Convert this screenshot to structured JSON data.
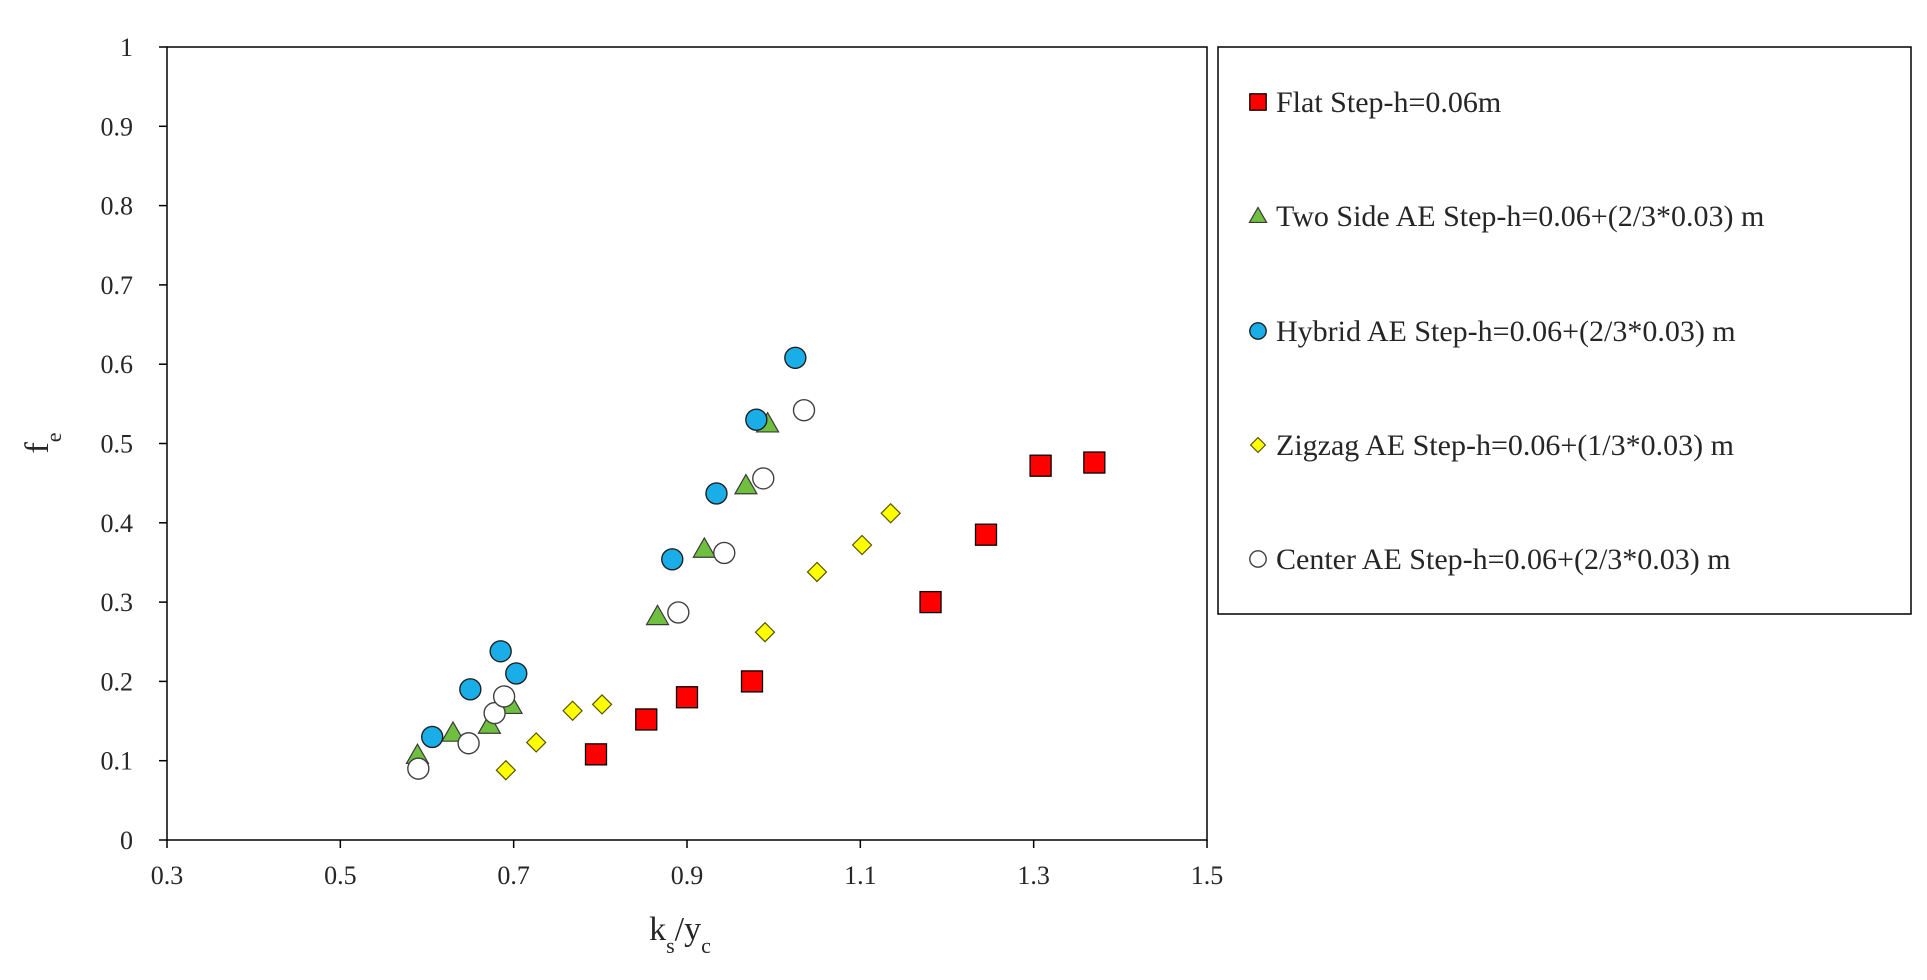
{
  "chart_data": {
    "type": "scatter",
    "title": "",
    "xlabel": {
      "main": "k",
      "sub1": "s",
      "sep": "/y",
      "sub2": "c"
    },
    "ylabel": {
      "main": "f",
      "sub": "e"
    },
    "xlim": [
      0.3,
      1.5
    ],
    "ylim": [
      0,
      1
    ],
    "xticks": [
      0.3,
      0.5,
      0.7,
      0.9,
      1.1,
      1.3,
      1.5
    ],
    "xtick_labels": [
      "0.3",
      "0.5",
      "0.7",
      "0.9",
      "1.1",
      "1.3",
      "1.5"
    ],
    "yticks": [
      0,
      0.1,
      0.2,
      0.3,
      0.4,
      0.5,
      0.6,
      0.7,
      0.8,
      0.9,
      1
    ],
    "ytick_labels": [
      "0",
      "0.1",
      "0.2",
      "0.3",
      "0.4",
      "0.5",
      "0.6",
      "0.7",
      "0.8",
      "0.9",
      "1"
    ],
    "grid": false,
    "legend_position": "right",
    "series": [
      {
        "name": "Flat Step-h=0.06m",
        "marker": "square",
        "color": "#ff0000",
        "points": [
          [
            0.795,
            0.108
          ],
          [
            0.853,
            0.152
          ],
          [
            0.9,
            0.18
          ],
          [
            0.975,
            0.2
          ],
          [
            1.181,
            0.3
          ],
          [
            1.245,
            0.385
          ],
          [
            1.308,
            0.472
          ],
          [
            1.37,
            0.476
          ]
        ]
      },
      {
        "name": "Two Side AE Step-h=0.06+(2/3*0.03) m",
        "marker": "triangle",
        "color": "#70c040",
        "points": [
          [
            0.589,
            0.107
          ],
          [
            0.63,
            0.135
          ],
          [
            0.672,
            0.145
          ],
          [
            0.697,
            0.17
          ],
          [
            0.866,
            0.282
          ],
          [
            0.92,
            0.367
          ],
          [
            0.968,
            0.447
          ],
          [
            0.993,
            0.525
          ]
        ]
      },
      {
        "name": "Hybrid AE Step-h=0.06+(2/3*0.03) m",
        "marker": "circle",
        "color": "#1aaee8",
        "points": [
          [
            0.606,
            0.13
          ],
          [
            0.65,
            0.19
          ],
          [
            0.685,
            0.238
          ],
          [
            0.703,
            0.21
          ],
          [
            0.883,
            0.354
          ],
          [
            0.934,
            0.437
          ],
          [
            0.98,
            0.53
          ],
          [
            1.025,
            0.608
          ]
        ]
      },
      {
        "name": "Zigzag AE Step-h=0.06+(1/3*0.03) m",
        "marker": "diamond",
        "color": "#ffff00",
        "points": [
          [
            0.691,
            0.088
          ],
          [
            0.726,
            0.123
          ],
          [
            0.768,
            0.163
          ],
          [
            0.802,
            0.171
          ],
          [
            0.99,
            0.262
          ],
          [
            1.05,
            0.338
          ],
          [
            1.102,
            0.372
          ],
          [
            1.135,
            0.412
          ]
        ]
      },
      {
        "name": "Center AE Step-h=0.06+(2/3*0.03) m",
        "marker": "open-circle",
        "color": "#ffffff",
        "points": [
          [
            0.59,
            0.09
          ],
          [
            0.648,
            0.122
          ],
          [
            0.678,
            0.16
          ],
          [
            0.689,
            0.181
          ],
          [
            0.89,
            0.287
          ],
          [
            0.943,
            0.362
          ],
          [
            0.988,
            0.456
          ],
          [
            1.035,
            0.542
          ]
        ]
      }
    ]
  }
}
